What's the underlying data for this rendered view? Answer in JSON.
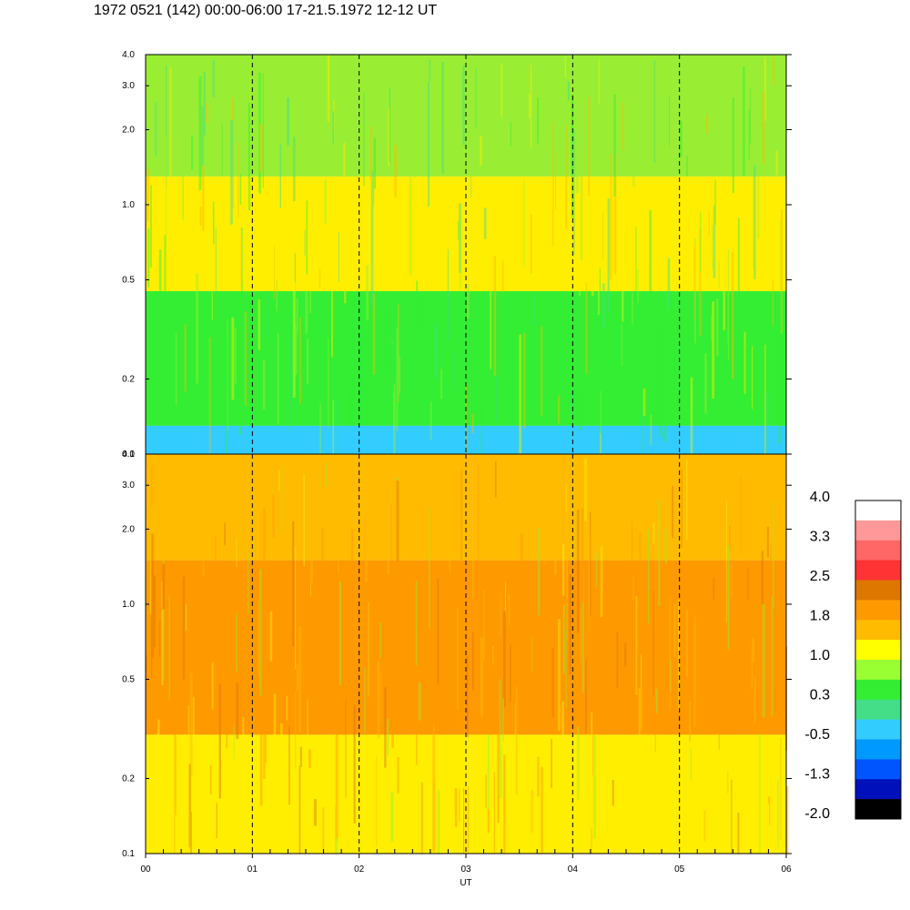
{
  "title": "1972 0521 (142) 00:00-06:00 17-21.5.1972  12-12 UT",
  "chart_data": {
    "type": "heatmap",
    "xlabel": "UT",
    "x_ticks": [
      "00",
      "01",
      "02",
      "03",
      "04",
      "05",
      "06"
    ],
    "x_range": [
      0,
      6
    ],
    "y_scale": "log",
    "y_range": [
      0.1,
      4.0
    ],
    "y_tick_labels": [
      "4.0",
      "3.0",
      "2.0",
      "1.0",
      "0.5",
      "0.2",
      "0.1"
    ],
    "y_tick_values": [
      4.0,
      3.0,
      2.0,
      1.0,
      0.5,
      0.2,
      0.1
    ],
    "hour_marker_lines": [
      1,
      2,
      3,
      4,
      5
    ],
    "panels": [
      {
        "name": "upper",
        "dominant_colors_by_frequency": [
          {
            "from": 0.1,
            "to": 0.13,
            "color": "#33ccff"
          },
          {
            "from": 0.13,
            "to": 0.45,
            "color": "#33ee33"
          },
          {
            "from": 0.45,
            "to": 1.3,
            "color": "#ffee00"
          },
          {
            "from": 1.3,
            "to": 4.0,
            "color": "#99ee33"
          }
        ]
      },
      {
        "name": "lower",
        "dominant_colors_by_frequency": [
          {
            "from": 0.1,
            "to": 0.3,
            "color": "#ffee00"
          },
          {
            "from": 0.3,
            "to": 1.5,
            "color": "#ff9900"
          },
          {
            "from": 1.5,
            "to": 4.0,
            "color": "#ffbb00"
          }
        ]
      }
    ],
    "colorbar": {
      "labels": [
        "4.0",
        "3.3",
        "2.5",
        "1.8",
        "1.0",
        "0.3",
        "-0.5",
        "-1.3",
        "-2.0"
      ],
      "colors": [
        "#ffffff",
        "#ff9999",
        "#ff6666",
        "#ff3333",
        "#dd7700",
        "#ff9900",
        "#ffbb00",
        "#ffff00",
        "#99ff33",
        "#33ee33",
        "#44dd88",
        "#33ccff",
        "#0099ff",
        "#0055ff",
        "#0011bb",
        "#000000"
      ]
    }
  }
}
